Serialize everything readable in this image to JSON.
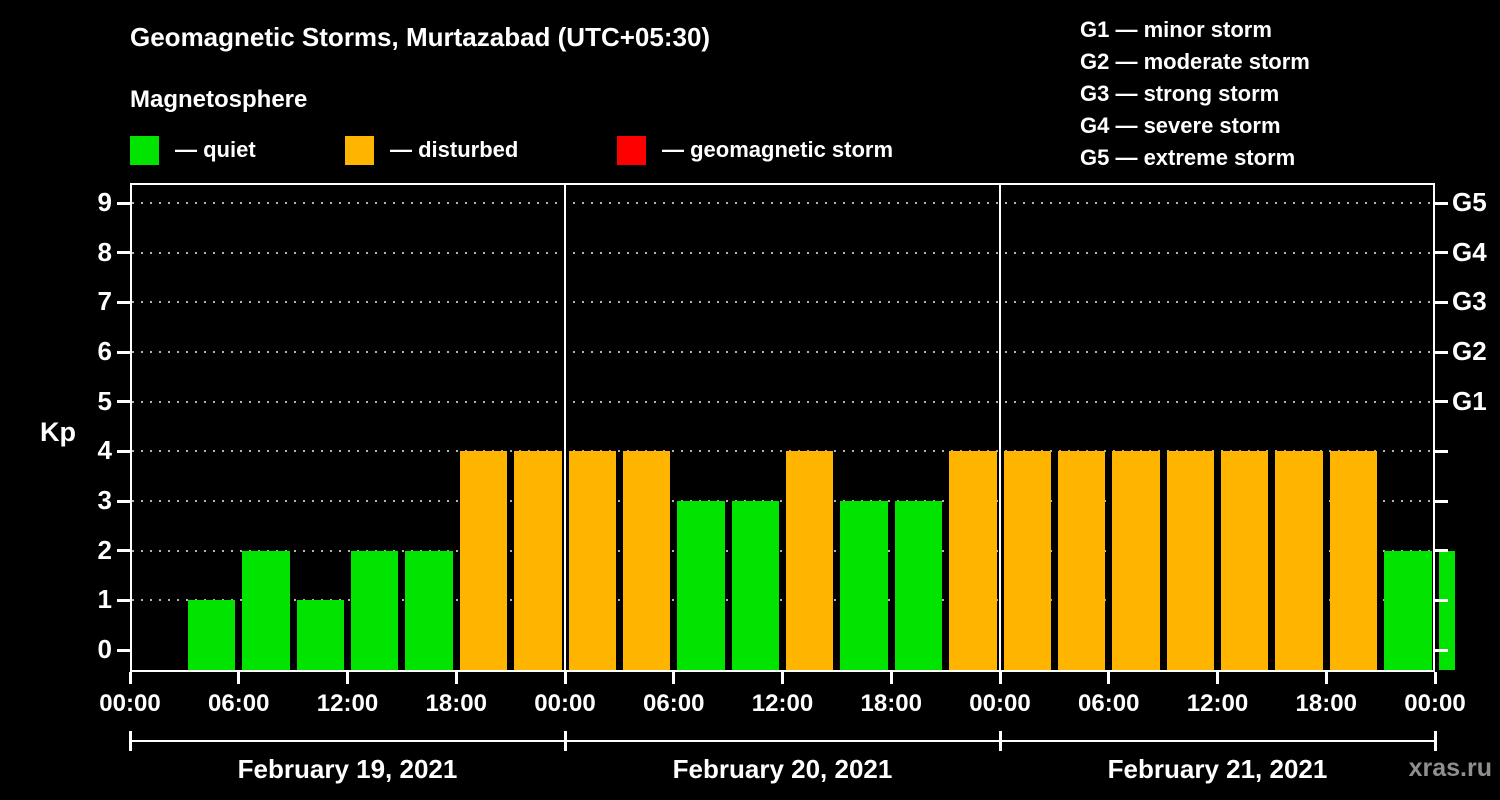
{
  "title": "Geomagnetic Storms, Murtazabad (UTC+05:30)",
  "subtitle": "Magnetosphere",
  "watermark": "xras.ru",
  "legend": {
    "items": [
      {
        "key": "quiet",
        "label": "— quiet",
        "color": "#00e400"
      },
      {
        "key": "disturbed",
        "label": "— disturbed",
        "color": "#ffb400"
      },
      {
        "key": "storm",
        "label": "— geomagnetic storm",
        "color": "#ff0000"
      }
    ]
  },
  "g_legend": {
    "items": [
      "G1 — minor storm",
      "G2 — moderate storm",
      "G3 — strong storm",
      "G4 — severe storm",
      "G5 — extreme storm"
    ]
  },
  "chart_data": {
    "type": "bar",
    "title": "Geomagnetic Storms, Murtazabad (UTC+05:30)",
    "subtitle": "Magnetosphere",
    "ylabel": "Kp",
    "ylim": [
      0,
      9
    ],
    "interval_hours": 3,
    "grid": "dotted horizontal lines at Kp 1-9",
    "y_ticks": [
      0,
      1,
      2,
      3,
      4,
      5,
      6,
      7,
      8,
      9
    ],
    "right_axis": {
      "labels": [
        {
          "text": "G1",
          "kp": 5
        },
        {
          "text": "G2",
          "kp": 6
        },
        {
          "text": "G3",
          "kp": 7
        },
        {
          "text": "G4",
          "kp": 8
        },
        {
          "text": "G5",
          "kp": 9
        }
      ]
    },
    "x_tick_labels": [
      "00:00",
      "06:00",
      "12:00",
      "18:00",
      "00:00",
      "06:00",
      "12:00",
      "18:00",
      "00:00",
      "06:00",
      "12:00",
      "18:00",
      "00:00"
    ],
    "days": [
      {
        "date": "February 19, 2021",
        "values": [
          0,
          1,
          2,
          1,
          2,
          2,
          4,
          4
        ]
      },
      {
        "date": "February 20, 2021",
        "values": [
          4,
          4,
          3,
          3,
          4,
          3,
          3,
          4
        ]
      },
      {
        "date": "February 21, 2021",
        "values": [
          4,
          4,
          4,
          4,
          4,
          4,
          4,
          2
        ]
      }
    ],
    "partial_next_value": 2,
    "color_rules": {
      "quiet": "#00e400",
      "disturbed": "#ffb400",
      "storm": "#ff0000",
      "disturbed_min": 4,
      "storm_min": 5
    }
  }
}
